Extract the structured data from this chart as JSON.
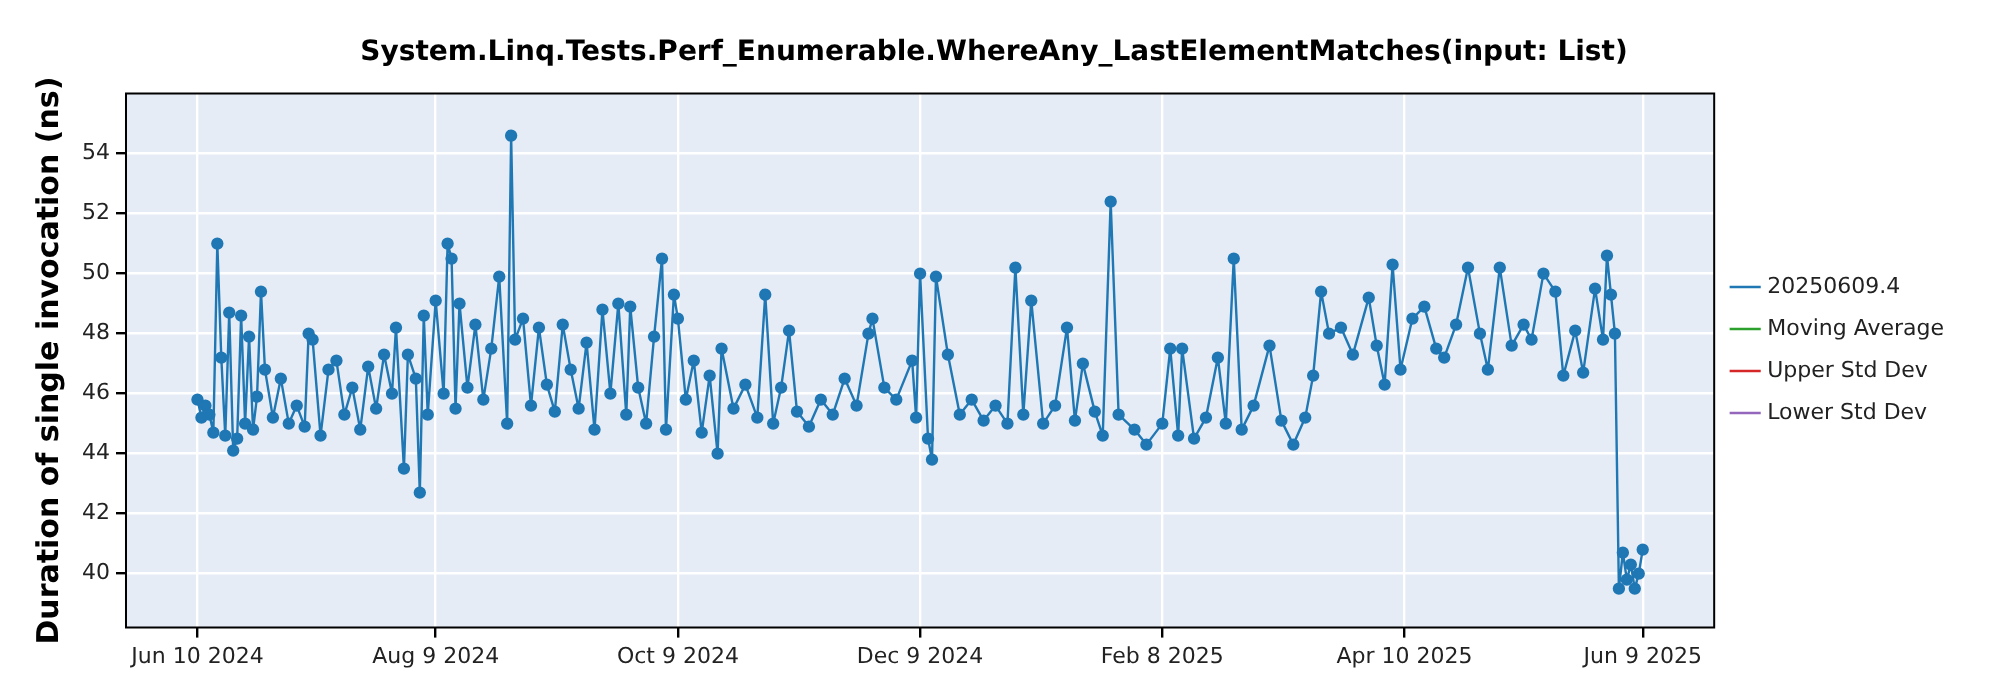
{
  "chart_data": {
    "type": "line",
    "title": "System.Linq.Tests.Perf_Enumerable.WhereAny_LastElementMatches(input: List)",
    "ylabel": "Duration of single invocation (ns)",
    "xlim": [
      "2024-05-23",
      "2025-06-27"
    ],
    "xticks": [
      {
        "value": "2024-06-10",
        "label": "Jun 10 2024"
      },
      {
        "value": "2024-08-09",
        "label": "Aug 9 2024"
      },
      {
        "value": "2024-10-09",
        "label": "Oct 9 2024"
      },
      {
        "value": "2024-12-09",
        "label": "Dec 9 2024"
      },
      {
        "value": "2025-02-08",
        "label": "Feb 8 2025"
      },
      {
        "value": "2025-04-10",
        "label": "Apr 10 2025"
      },
      {
        "value": "2025-06-09",
        "label": "Jun 9 2025"
      }
    ],
    "ylim": [
      38.2,
      56
    ],
    "yticks": [
      40,
      42,
      44,
      46,
      48,
      50,
      52,
      54
    ],
    "grid": true,
    "legend": "right",
    "marker": "circle",
    "line_style": "solid",
    "series": [
      {
        "name": "20250609.4",
        "color": "#1f77b4",
        "x": [
          "2024-06-10",
          "2024-06-11",
          "2024-06-12",
          "2024-06-13",
          "2024-06-14",
          "2024-06-15",
          "2024-06-16",
          "2024-06-17",
          "2024-06-18",
          "2024-06-19",
          "2024-06-20",
          "2024-06-21",
          "2024-06-22",
          "2024-06-23",
          "2024-06-24",
          "2024-06-25",
          "2024-06-26",
          "2024-06-27",
          "2024-06-29",
          "2024-07-01",
          "2024-07-03",
          "2024-07-05",
          "2024-07-07",
          "2024-07-08",
          "2024-07-09",
          "2024-07-11",
          "2024-07-13",
          "2024-07-15",
          "2024-07-17",
          "2024-07-19",
          "2024-07-21",
          "2024-07-23",
          "2024-07-25",
          "2024-07-27",
          "2024-07-29",
          "2024-07-30",
          "2024-08-01",
          "2024-08-02",
          "2024-08-04",
          "2024-08-05",
          "2024-08-06",
          "2024-08-07",
          "2024-08-09",
          "2024-08-11",
          "2024-08-12",
          "2024-08-13",
          "2024-08-14",
          "2024-08-15",
          "2024-08-17",
          "2024-08-19",
          "2024-08-21",
          "2024-08-23",
          "2024-08-25",
          "2024-08-27",
          "2024-08-28",
          "2024-08-29",
          "2024-08-31",
          "2024-09-02",
          "2024-09-04",
          "2024-09-06",
          "2024-09-08",
          "2024-09-10",
          "2024-09-12",
          "2024-09-14",
          "2024-09-16",
          "2024-09-18",
          "2024-09-20",
          "2024-09-22",
          "2024-09-24",
          "2024-09-26",
          "2024-09-27",
          "2024-09-29",
          "2024-10-01",
          "2024-10-03",
          "2024-10-05",
          "2024-10-06",
          "2024-10-08",
          "2024-10-09",
          "2024-10-11",
          "2024-10-13",
          "2024-10-15",
          "2024-10-17",
          "2024-10-19",
          "2024-10-20",
          "2024-10-23",
          "2024-10-26",
          "2024-10-29",
          "2024-10-31",
          "2024-11-02",
          "2024-11-04",
          "2024-11-06",
          "2024-11-08",
          "2024-11-11",
          "2024-11-14",
          "2024-11-17",
          "2024-11-20",
          "2024-11-23",
          "2024-11-26",
          "2024-11-27",
          "2024-11-30",
          "2024-12-03",
          "2024-12-07",
          "2024-12-08",
          "2024-12-09",
          "2024-12-11",
          "2024-12-12",
          "2024-12-13",
          "2024-12-16",
          "2024-12-19",
          "2024-12-22",
          "2024-12-25",
          "2024-12-28",
          "2024-12-31",
          "2025-01-02",
          "2025-01-04",
          "2025-01-06",
          "2025-01-09",
          "2025-01-12",
          "2025-01-15",
          "2025-01-17",
          "2025-01-19",
          "2025-01-22",
          "2025-01-24",
          "2025-01-26",
          "2025-01-28",
          "2025-02-01",
          "2025-02-04",
          "2025-02-08",
          "2025-02-10",
          "2025-02-12",
          "2025-02-13",
          "2025-02-16",
          "2025-02-19",
          "2025-02-22",
          "2025-02-24",
          "2025-02-26",
          "2025-02-28",
          "2025-03-03",
          "2025-03-07",
          "2025-03-10",
          "2025-03-13",
          "2025-03-16",
          "2025-03-18",
          "2025-03-20",
          "2025-03-22",
          "2025-03-25",
          "2025-03-28",
          "2025-04-01",
          "2025-04-03",
          "2025-04-05",
          "2025-04-07",
          "2025-04-09",
          "2025-04-12",
          "2025-04-15",
          "2025-04-18",
          "2025-04-20",
          "2025-04-23",
          "2025-04-26",
          "2025-04-29",
          "2025-05-01",
          "2025-05-04",
          "2025-05-07",
          "2025-05-10",
          "2025-05-12",
          "2025-05-15",
          "2025-05-18",
          "2025-05-20",
          "2025-05-23",
          "2025-05-25",
          "2025-05-28",
          "2025-05-30",
          "2025-05-31",
          "2025-06-01",
          "2025-06-02",
          "2025-06-03",
          "2025-06-04",
          "2025-06-05",
          "2025-06-06",
          "2025-06-07",
          "2025-06-08",
          "2025-06-09"
        ],
        "values": [
          45.8,
          45.2,
          45.6,
          45.3,
          44.7,
          51.0,
          47.2,
          44.6,
          48.7,
          44.1,
          44.5,
          48.6,
          45.0,
          47.9,
          44.8,
          45.9,
          49.4,
          46.8,
          45.2,
          46.5,
          45.0,
          45.6,
          44.9,
          48.0,
          47.8,
          44.6,
          46.8,
          47.1,
          45.3,
          46.2,
          44.8,
          46.9,
          45.5,
          47.3,
          46.0,
          48.2,
          43.5,
          47.3,
          46.5,
          42.7,
          48.6,
          45.3,
          49.1,
          46.0,
          51.0,
          50.5,
          45.5,
          49.0,
          46.2,
          48.3,
          45.8,
          47.5,
          49.9,
          45.0,
          54.6,
          47.8,
          48.5,
          45.6,
          48.2,
          46.3,
          45.4,
          48.3,
          46.8,
          45.5,
          47.7,
          44.8,
          48.8,
          46.0,
          49.0,
          45.3,
          48.9,
          46.2,
          45.0,
          47.9,
          50.5,
          44.8,
          49.3,
          48.5,
          45.8,
          47.1,
          44.7,
          46.6,
          44.0,
          47.5,
          45.5,
          46.3,
          45.2,
          49.3,
          45.0,
          46.2,
          48.1,
          45.4,
          44.9,
          45.8,
          45.3,
          46.5,
          45.6,
          48.0,
          48.5,
          46.2,
          45.8,
          47.1,
          45.2,
          50.0,
          44.5,
          43.8,
          49.9,
          47.3,
          45.3,
          45.8,
          45.1,
          45.6,
          45.0,
          50.2,
          45.3,
          49.1,
          45.0,
          45.6,
          48.2,
          45.1,
          47.0,
          45.4,
          44.6,
          52.4,
          45.3,
          44.8,
          44.3,
          45.0,
          47.5,
          44.6,
          47.5,
          44.5,
          45.2,
          47.2,
          45.0,
          50.5,
          44.8,
          45.6,
          47.6,
          45.1,
          44.3,
          45.2,
          46.6,
          49.4,
          48.0,
          48.2,
          47.3,
          49.2,
          47.6,
          46.3,
          50.3,
          46.8,
          48.5,
          48.9,
          47.5,
          47.2,
          48.3,
          50.2,
          48.0,
          46.8,
          50.2,
          47.6,
          48.3,
          47.8,
          50.0,
          49.4,
          46.6,
          48.1,
          46.7,
          49.5,
          47.8,
          50.6,
          49.3,
          48.0,
          39.5,
          40.7,
          39.8,
          40.3,
          39.5,
          40.0,
          40.8
        ]
      },
      {
        "name": "Moving Average",
        "color": "#2ca02c"
      },
      {
        "name": "Upper Std Dev",
        "color": "#d62728"
      },
      {
        "name": "Lower Std Dev",
        "color": "#9467bd"
      }
    ]
  }
}
